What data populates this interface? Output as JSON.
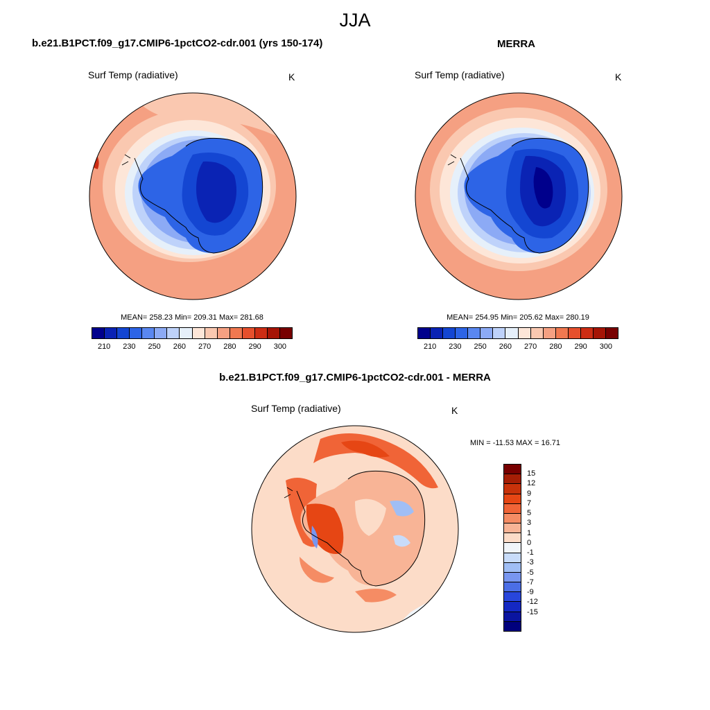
{
  "season": "JJA",
  "panels": {
    "model": {
      "title": "b.e21.B1PCT.f09_g17.CMIP6-1pctCO2-cdr.001 (yrs 150-174)",
      "variable": "Surf Temp (radiative)",
      "units": "K",
      "stats": "MEAN= 258.23  Min= 209.31  Max= 281.68"
    },
    "obs": {
      "title": "MERRA",
      "variable": "Surf Temp (radiative)",
      "units": "K",
      "stats": "MEAN= 254.95  Min= 205.62  Max= 280.19"
    },
    "diff": {
      "title": "b.e21.B1PCT.f09_g17.CMIP6-1pctCO2-cdr.001 - MERRA",
      "variable": "Surf Temp (radiative)",
      "units": "K",
      "stats": "MIN = -11.53 MAX =  16.71"
    }
  },
  "abs_colorbar": {
    "colors": [
      "#00008c",
      "#0a23b4",
      "#1446d2",
      "#2d64e6",
      "#5a87f0",
      "#8caaf5",
      "#bed2fa",
      "#e6f0fa",
      "#fde6d8",
      "#fac8b0",
      "#f5a082",
      "#f07850",
      "#e6502d",
      "#cd2d14",
      "#a51405",
      "#780000"
    ],
    "ticks": [
      "210",
      "230",
      "250",
      "260",
      "270",
      "280",
      "290",
      "300"
    ]
  },
  "diff_colorbar": {
    "colors": [
      "#780000",
      "#a51e05",
      "#c8320a",
      "#e64614",
      "#f06437",
      "#f58c64",
      "#f8b496",
      "#fcdcc8",
      "#f0f5fa",
      "#c8dcfa",
      "#a0bef5",
      "#7896f0",
      "#4b6ee6",
      "#2846dc",
      "#1428c3",
      "#0a14a0",
      "#00007d"
    ],
    "ticks": [
      "15",
      "12",
      "9",
      "7",
      "5",
      "3",
      "1",
      "0",
      "-1",
      "-3",
      "-5",
      "-7",
      "-9",
      "-12",
      "-15"
    ]
  }
}
